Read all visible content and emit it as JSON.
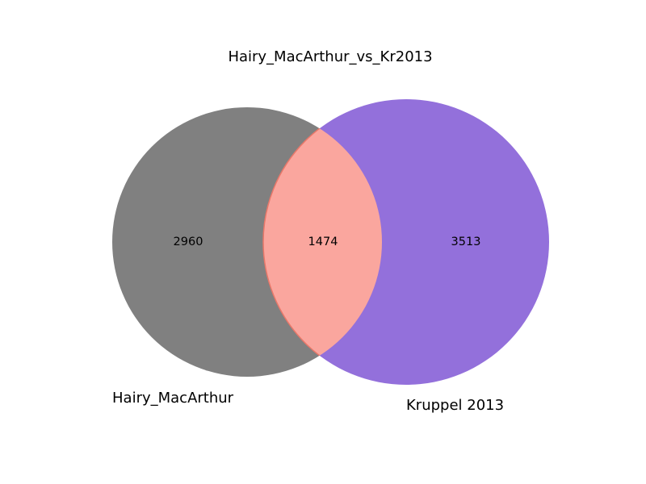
{
  "chart_data": {
    "type": "venn",
    "title": "Hairy_MacArthur_vs_Kr2013",
    "sets": [
      {
        "name": "Hairy_MacArthur",
        "only_count": "2960",
        "color": "#808080"
      },
      {
        "name": "Kruppel 2013",
        "only_count": "3513",
        "color": "#9370DB"
      }
    ],
    "intersection": {
      "count": "1474",
      "color": "#FAA69E",
      "edge_color": "#E8786A"
    }
  }
}
